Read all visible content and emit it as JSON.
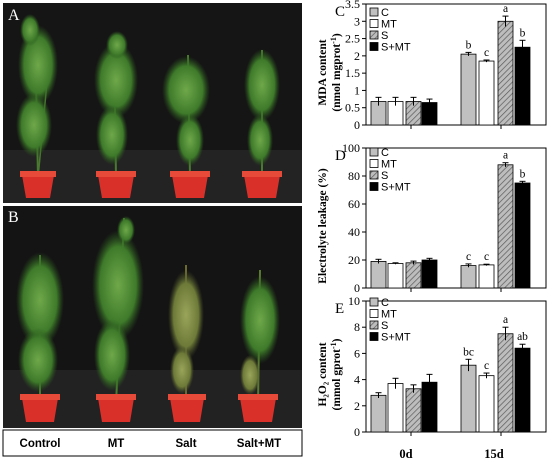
{
  "photos": {
    "top_label": "A",
    "bottom_label": "B",
    "treatments": [
      "Control",
      "MT",
      "Salt",
      "Salt+MT"
    ]
  },
  "legend_labels": [
    "C",
    "MT",
    "S",
    "S+MT"
  ],
  "colors": {
    "C": "#c0c0c0",
    "MT": "#ffffff",
    "S": "hatched-gray",
    "S+MT": "#000000",
    "photo_bg": "#111111",
    "pot": "#d9302a"
  },
  "chart_data": [
    {
      "panel": "C",
      "type": "bar",
      "categories": [
        "0d",
        "15d"
      ],
      "ylabel_line1": "MDA content",
      "ylabel_line2": "(nmol mgprot",
      "ylabel_sup": "-1",
      "ylabel_end": ")",
      "ylim": [
        0,
        3.5
      ],
      "yticks": [
        0,
        0.5,
        1,
        1.5,
        2,
        2.5,
        3,
        3.5
      ],
      "series": [
        {
          "name": "C",
          "values": [
            0.68,
            2.05
          ],
          "errors": [
            0.12,
            0.05
          ],
          "letters": [
            "",
            "b"
          ]
        },
        {
          "name": "MT",
          "values": [
            0.68,
            1.85
          ],
          "errors": [
            0.12,
            0.03
          ],
          "letters": [
            "",
            "c"
          ]
        },
        {
          "name": "S",
          "values": [
            0.68,
            3.0
          ],
          "errors": [
            0.12,
            0.15
          ],
          "letters": [
            "",
            "a"
          ]
        },
        {
          "name": "S+MT",
          "values": [
            0.65,
            2.25
          ],
          "errors": [
            0.1,
            0.2
          ],
          "letters": [
            "",
            "b"
          ]
        }
      ]
    },
    {
      "panel": "D",
      "type": "bar",
      "categories": [
        "0d",
        "15d"
      ],
      "ylabel_line1": "Electrolyte leakage (%)",
      "ylabel_line2": "",
      "ylabel_sup": "",
      "ylabel_end": "",
      "ylim": [
        0,
        100
      ],
      "yticks": [
        0,
        20,
        40,
        60,
        80,
        100
      ],
      "series": [
        {
          "name": "C",
          "values": [
            19,
            16
          ],
          "errors": [
            1.5,
            1.2
          ],
          "letters": [
            "",
            "c"
          ]
        },
        {
          "name": "MT",
          "values": [
            17.5,
            16.5
          ],
          "errors": [
            0.5,
            0.5
          ],
          "letters": [
            "",
            "c"
          ]
        },
        {
          "name": "S",
          "values": [
            18,
            88
          ],
          "errors": [
            1.2,
            1.5
          ],
          "letters": [
            "",
            "a"
          ]
        },
        {
          "name": "S+MT",
          "values": [
            20,
            75
          ],
          "errors": [
            1.2,
            1.2
          ],
          "letters": [
            "",
            "b"
          ]
        }
      ]
    },
    {
      "panel": "E",
      "type": "bar",
      "categories": [
        "0d",
        "15d"
      ],
      "ylabel_line1": "content",
      "ylabel_formula": "H₂O₂",
      "ylabel_line2": "(mmol gprot",
      "ylabel_sup": "-1",
      "ylabel_end": ")",
      "ylim": [
        0,
        10
      ],
      "yticks": [
        0,
        2,
        4,
        6,
        8,
        10
      ],
      "series": [
        {
          "name": "C",
          "values": [
            2.8,
            5.1
          ],
          "errors": [
            0.2,
            0.45
          ],
          "letters": [
            "",
            "bc"
          ]
        },
        {
          "name": "MT",
          "values": [
            3.7,
            4.3
          ],
          "errors": [
            0.4,
            0.2
          ],
          "letters": [
            "",
            "c"
          ]
        },
        {
          "name": "S",
          "values": [
            3.3,
            7.5
          ],
          "errors": [
            0.3,
            0.5
          ],
          "letters": [
            "",
            "a"
          ]
        },
        {
          "name": "S+MT",
          "values": [
            3.8,
            6.4
          ],
          "errors": [
            0.6,
            0.3
          ],
          "letters": [
            "",
            "ab"
          ]
        }
      ]
    }
  ]
}
